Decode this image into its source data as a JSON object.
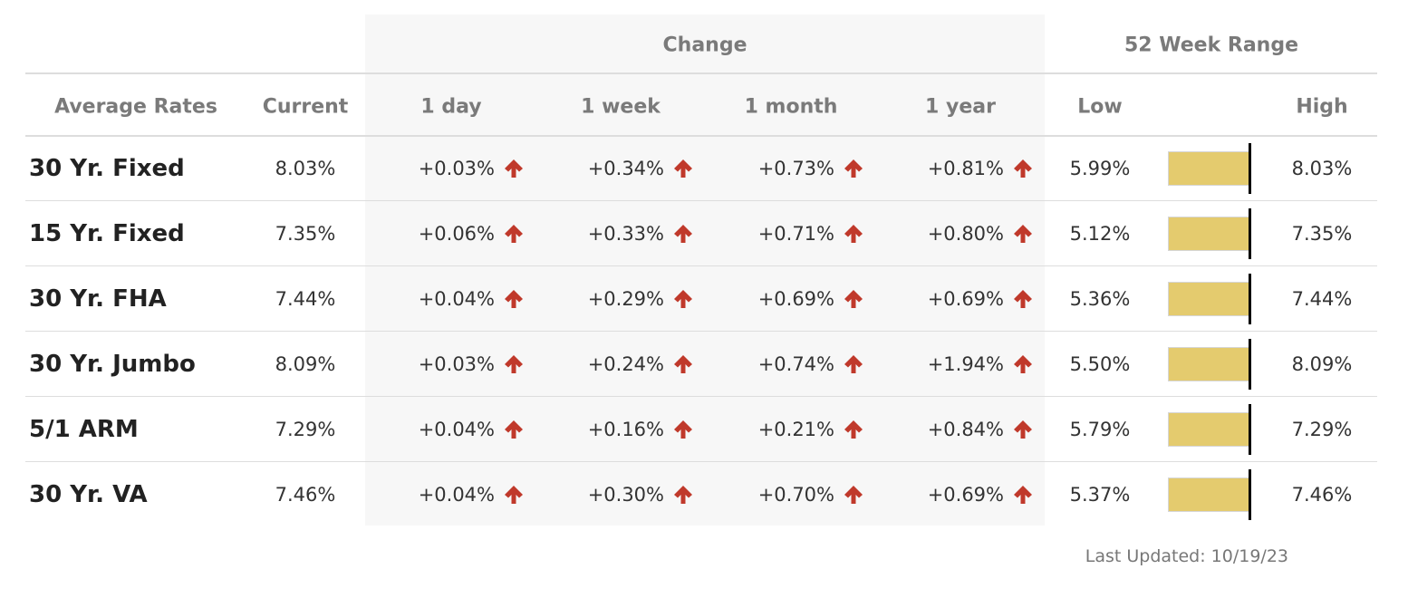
{
  "table": {
    "group_headers": [
      "Change",
      "52 Week Range"
    ],
    "columns": [
      "Average Rates",
      "Current",
      "1 day",
      "1 week",
      "1 month",
      "1 year",
      "Low",
      "High"
    ],
    "rows": [
      [
        "30 Yr. Fixed",
        "8.03%",
        "+0.03%",
        "+0.34%",
        "+0.73%",
        "+0.81%",
        "5.99%",
        "8.03%"
      ],
      [
        "15 Yr. Fixed",
        "7.35%",
        "+0.06%",
        "+0.33%",
        "+0.71%",
        "+0.80%",
        "5.12%",
        "7.35%"
      ],
      [
        "30 Yr. FHA",
        "7.44%",
        "+0.04%",
        "+0.29%",
        "+0.69%",
        "+0.69%",
        "5.36%",
        "7.44%"
      ],
      [
        "30 Yr. Jumbo",
        "8.09%",
        "+0.03%",
        "+0.24%",
        "+0.74%",
        "+1.94%",
        "5.50%",
        "8.09%"
      ],
      [
        "5/1 ARM",
        "7.29%",
        "+0.04%",
        "+0.16%",
        "+0.21%",
        "+0.84%",
        "5.79%",
        "7.29%"
      ],
      [
        "30 Yr. VA",
        "7.46%",
        "+0.04%",
        "+0.30%",
        "+0.70%",
        "+0.69%",
        "5.37%",
        "7.46%"
      ]
    ]
  },
  "footer": "Last Updated: 10/19/23"
}
